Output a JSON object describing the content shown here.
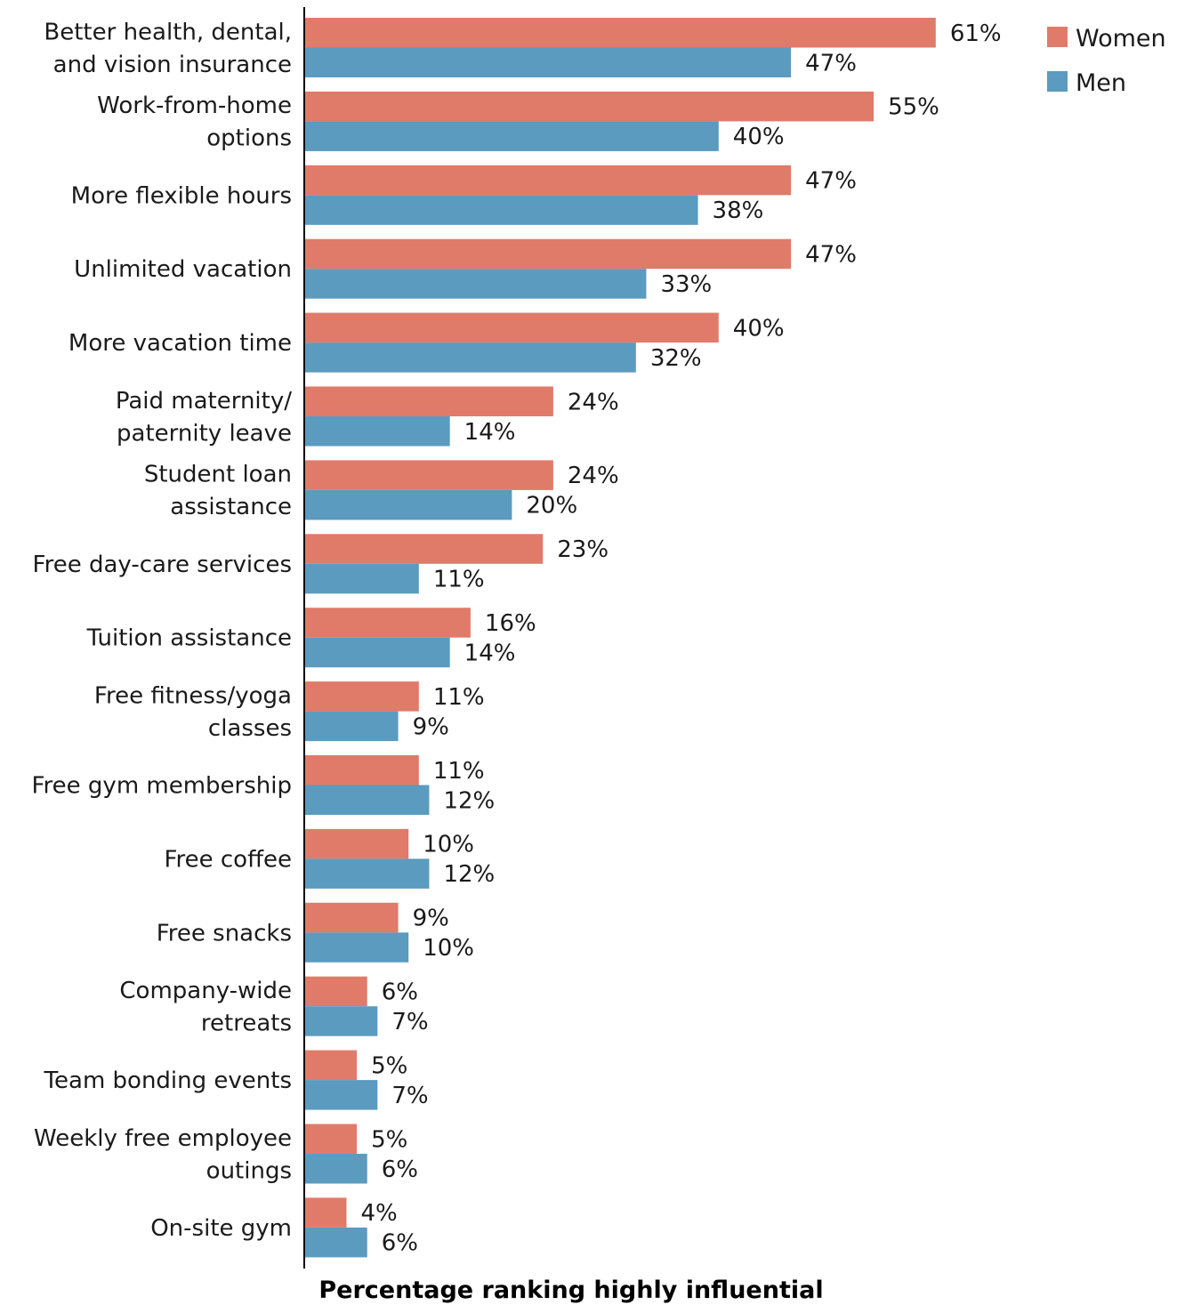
{
  "chart_data": {
    "type": "bar",
    "orientation": "horizontal",
    "categories": [
      [
        "Better health, dental,",
        "and vision insurance"
      ],
      [
        "Work-from-home",
        "options"
      ],
      [
        "More flexible hours"
      ],
      [
        "Unlimited vacation"
      ],
      [
        "More vacation time"
      ],
      [
        "Paid maternity/",
        "paternity leave"
      ],
      [
        "Student loan",
        "assistance"
      ],
      [
        "Free day-care services"
      ],
      [
        "Tuition assistance"
      ],
      [
        "Free fitness/yoga",
        "classes"
      ],
      [
        "Free gym membership"
      ],
      [
        "Free coffee"
      ],
      [
        "Free snacks"
      ],
      [
        "Company-wide",
        "retreats"
      ],
      [
        "Team bonding events"
      ],
      [
        "Weekly free employee",
        "outings"
      ],
      [
        "On-site gym"
      ]
    ],
    "series": [
      {
        "name": "Women",
        "color": "#e07b6a",
        "values": [
          61,
          55,
          47,
          47,
          40,
          24,
          24,
          23,
          16,
          11,
          11,
          10,
          9,
          6,
          5,
          5,
          4
        ]
      },
      {
        "name": "Men",
        "color": "#5b9bbf",
        "values": [
          47,
          40,
          38,
          33,
          32,
          14,
          20,
          11,
          14,
          9,
          12,
          12,
          10,
          7,
          7,
          6,
          6
        ]
      }
    ],
    "value_suffix": "%",
    "xlabel": "Percentage ranking highly influential",
    "xlim": [
      0,
      61
    ],
    "grid": false,
    "legend_position": "top-right"
  }
}
